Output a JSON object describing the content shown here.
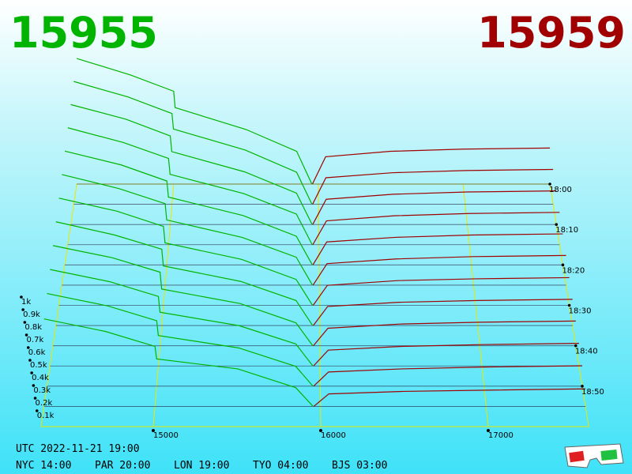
{
  "chart_data": {
    "type": "depth3d",
    "bid_label": "15955",
    "ask_label": "15959",
    "bid_color": "#00b400",
    "ask_color": "#a00000",
    "bid_prices": [
      14330,
      14700,
      15000,
      15010,
      15500,
      15850,
      15955
    ],
    "ask_prices": [
      15959,
      16050,
      16500,
      17000,
      17600
    ],
    "xlim": [
      14330,
      17600
    ],
    "xticks": [
      15000,
      16000,
      17000
    ],
    "zlim": [
      0,
      1000
    ],
    "zticks": [
      {
        "value": 100,
        "label": "0.1k"
      },
      {
        "value": 200,
        "label": "0.2k"
      },
      {
        "value": 300,
        "label": "0.3k"
      },
      {
        "value": 400,
        "label": "0.4k"
      },
      {
        "value": 500,
        "label": "0.5k"
      },
      {
        "value": 600,
        "label": "0.6k"
      },
      {
        "value": 700,
        "label": "0.7k"
      },
      {
        "value": 800,
        "label": "0.8k"
      },
      {
        "value": 900,
        "label": "0.9k"
      },
      {
        "value": 1000,
        "label": "1k"
      }
    ],
    "tlim": [
      "18:00",
      "19:00"
    ],
    "tticks": [
      "18:00",
      "18:10",
      "18:20",
      "18:30",
      "18:40",
      "18:50"
    ],
    "snapshots": [
      {
        "time": "18:00",
        "bids": [
          1150,
          1000,
          850,
          700,
          500,
          300,
          0
        ],
        "asks": [
          0,
          250,
          300,
          320,
          330
        ]
      },
      {
        "time": "18:05",
        "bids": [
          1110,
          970,
          820,
          680,
          490,
          290,
          0
        ],
        "asks": [
          0,
          240,
          285,
          305,
          315
        ]
      },
      {
        "time": "18:10",
        "bids": [
          1070,
          940,
          790,
          650,
          470,
          280,
          0
        ],
        "asks": [
          0,
          225,
          270,
          290,
          300
        ]
      },
      {
        "time": "18:15",
        "bids": [
          1030,
          900,
          760,
          620,
          450,
          270,
          0
        ],
        "asks": [
          0,
          210,
          255,
          275,
          285
        ]
      },
      {
        "time": "18:20",
        "bids": [
          990,
          870,
          730,
          590,
          430,
          250,
          0
        ],
        "asks": [
          0,
          200,
          240,
          260,
          270
        ]
      },
      {
        "time": "18:25",
        "bids": [
          950,
          830,
          700,
          560,
          410,
          240,
          0
        ],
        "asks": [
          0,
          185,
          225,
          245,
          255
        ]
      },
      {
        "time": "18:30",
        "bids": [
          910,
          800,
          670,
          530,
          390,
          220,
          0
        ],
        "asks": [
          0,
          170,
          210,
          225,
          235
        ]
      },
      {
        "time": "18:35",
        "bids": [
          870,
          760,
          640,
          500,
          370,
          210,
          0
        ],
        "asks": [
          0,
          160,
          195,
          210,
          220
        ]
      },
      {
        "time": "18:40",
        "bids": [
          830,
          730,
          610,
          470,
          350,
          190,
          0
        ],
        "asks": [
          0,
          145,
          180,
          195,
          205
        ]
      },
      {
        "time": "18:45",
        "bids": [
          790,
          690,
          570,
          440,
          330,
          180,
          0
        ],
        "asks": [
          0,
          130,
          160,
          175,
          185
        ]
      },
      {
        "time": "18:50",
        "bids": [
          750,
          650,
          530,
          410,
          310,
          160,
          0
        ],
        "asks": [
          0,
          115,
          140,
          155,
          165
        ]
      },
      {
        "time": "18:55",
        "bids": [
          700,
          600,
          480,
          380,
          300,
          150,
          0
        ],
        "asks": [
          0,
          100,
          120,
          130,
          140
        ]
      }
    ],
    "footer": {
      "utc": "UTC 2022-11-21 19:00",
      "cities": [
        "NYC 14:00",
        "PAR 20:00",
        "LON 19:00",
        "TYO 04:00",
        "BJS 03:00"
      ]
    }
  }
}
